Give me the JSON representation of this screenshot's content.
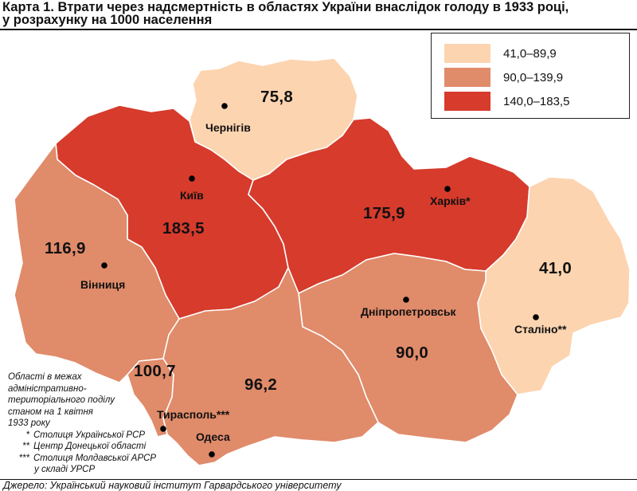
{
  "title": {
    "line1": "Карта 1. Втрати через надсмертність в областях України внаслідок голоду в 1933 році,",
    "line2": "у розрахунку на 1000 населення"
  },
  "legend": [
    {
      "label": "41,0–89,9",
      "color": "#fcd4b0"
    },
    {
      "label": "90,0–139,9",
      "color": "#e08b6a"
    },
    {
      "label": "140,0–183,5",
      "color": "#d63b2c"
    }
  ],
  "regions": {
    "chernihiv": {
      "city": "Чернігів",
      "value": "75,8",
      "color": "#fcd4b0"
    },
    "kyiv": {
      "city": "Київ",
      "value": "183,5",
      "color": "#d63b2c"
    },
    "kharkiv": {
      "city": "Харків*",
      "value": "175,9",
      "color": "#d63b2c"
    },
    "vinnytsia": {
      "city": "Вінниця",
      "value": "116,9",
      "color": "#e08b6a"
    },
    "stalino": {
      "city": "Сталіно**",
      "value": "41,0",
      "color": "#fcd4b0"
    },
    "dnipro": {
      "city": "Дніпропетровськ",
      "value": "90,0",
      "color": "#e08b6a"
    },
    "odesa": {
      "city": "Одеса",
      "value": "96,2",
      "color": "#e08b6a"
    },
    "moldavian": {
      "city": "Тирасполь***",
      "value": "100,7",
      "color": "#e08b6a"
    }
  },
  "notes": {
    "intro": [
      "Області в межах",
      "адміністративно-",
      "територіального поділу",
      "станом на 1 квітня",
      "1933 року"
    ],
    "footnotes": [
      {
        "mark": "*",
        "text": "Столиця Української РСР"
      },
      {
        "mark": "**",
        "text": "Центр Донецької області"
      },
      {
        "mark": "***",
        "text": "Столиця Молдавської АРСР",
        "cont": "у складі УРСР"
      }
    ]
  },
  "source": "Джерело: Український науковий інститут Гарвардського університету"
}
